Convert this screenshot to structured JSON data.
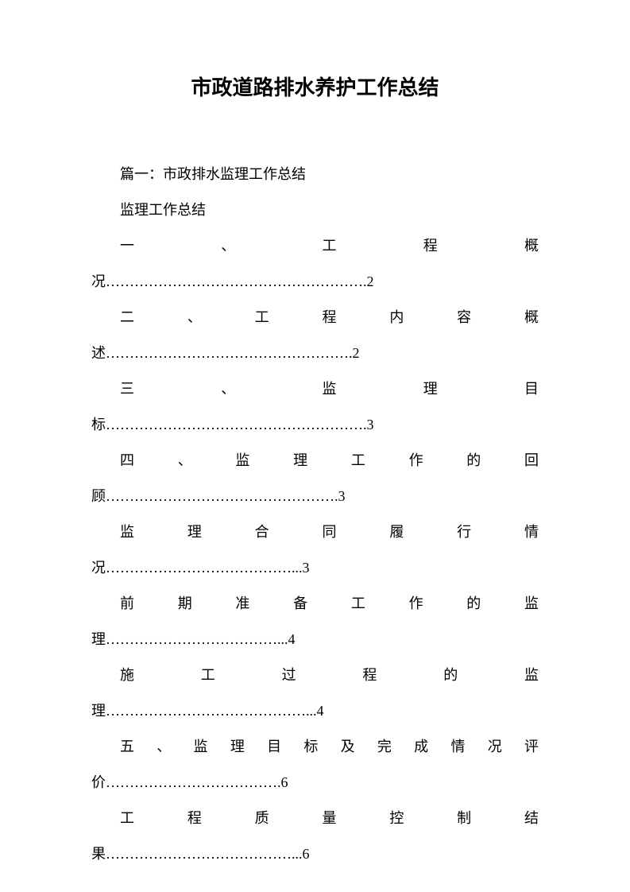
{
  "title": "市政道路排水养护工作总结",
  "intro": {
    "line1": "篇一：市政排水监理工作总结",
    "line2": "监理工作总结"
  },
  "toc": [
    {
      "label": "一、工程概",
      "cont": "况……………………………………………….2"
    },
    {
      "label": "二、工程内容概",
      "cont": "述…………………………………………….2"
    },
    {
      "label": "三、监理目",
      "cont": "标……………………………………………….3"
    },
    {
      "label": "四、监理工作的回",
      "cont": "顾………………………………………….3"
    },
    {
      "label": "监理合同履行情",
      "cont": "况…………………………………...3"
    },
    {
      "label": "前期准备工作的监",
      "cont": "理………………………………...4"
    },
    {
      "label": "施工过程的监",
      "cont": "理……………………………………...4"
    },
    {
      "label": "五、监理目标及完成情况评",
      "cont": "价……………………………….6"
    },
    {
      "label": "工程质量控制结",
      "cont": "果…………………………………...6"
    }
  ]
}
